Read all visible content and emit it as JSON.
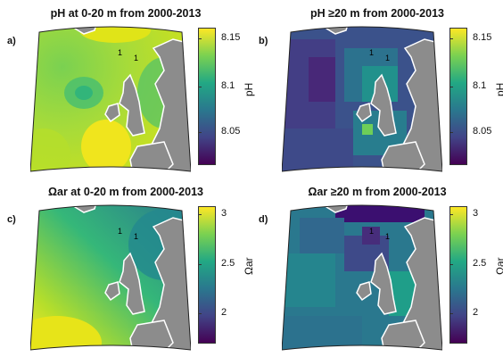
{
  "colors": {
    "colormap": [
      "#440154",
      "#414487",
      "#2a788e",
      "#22a884",
      "#7ad151",
      "#fde725"
    ],
    "land": "#8c8c8c",
    "coast_edge": "#ffffff"
  },
  "panels": [
    {
      "letter": "a)",
      "title": "pH at 0-20 m from 2000-2013",
      "cbar_label": "pH",
      "ticks": [
        "8.15",
        "8.1",
        "8.05"
      ],
      "tick_positions": [
        0.08,
        0.43,
        0.76
      ],
      "contour_labels": [
        "1",
        "1"
      ],
      "field": "ph_surface"
    },
    {
      "letter": "b)",
      "title": "pH ≥20 m from 2000-2013",
      "cbar_label": "pH",
      "ticks": [
        "8.15",
        "8.1",
        "8.05"
      ],
      "tick_positions": [
        0.08,
        0.43,
        0.76
      ],
      "contour_labels": [
        "1",
        "1"
      ],
      "field": "ph_deep"
    },
    {
      "letter": "c)",
      "title": "Ωar at 0-20 m from 2000-2013",
      "cbar_label": "Ωar",
      "ticks": [
        "3",
        "2.5",
        "2"
      ],
      "tick_positions": [
        0.06,
        0.42,
        0.78
      ],
      "contour_labels": [
        "1",
        "1"
      ],
      "field": "omega_surface"
    },
    {
      "letter": "d)",
      "title": "Ωar ≥20 m from 2000-2013",
      "cbar_label": "Ωar",
      "ticks": [
        "3",
        "2.5",
        "2"
      ],
      "tick_positions": [
        0.06,
        0.42,
        0.78
      ],
      "contour_labels": [
        "1",
        "1"
      ],
      "field": "omega_deep"
    }
  ]
}
